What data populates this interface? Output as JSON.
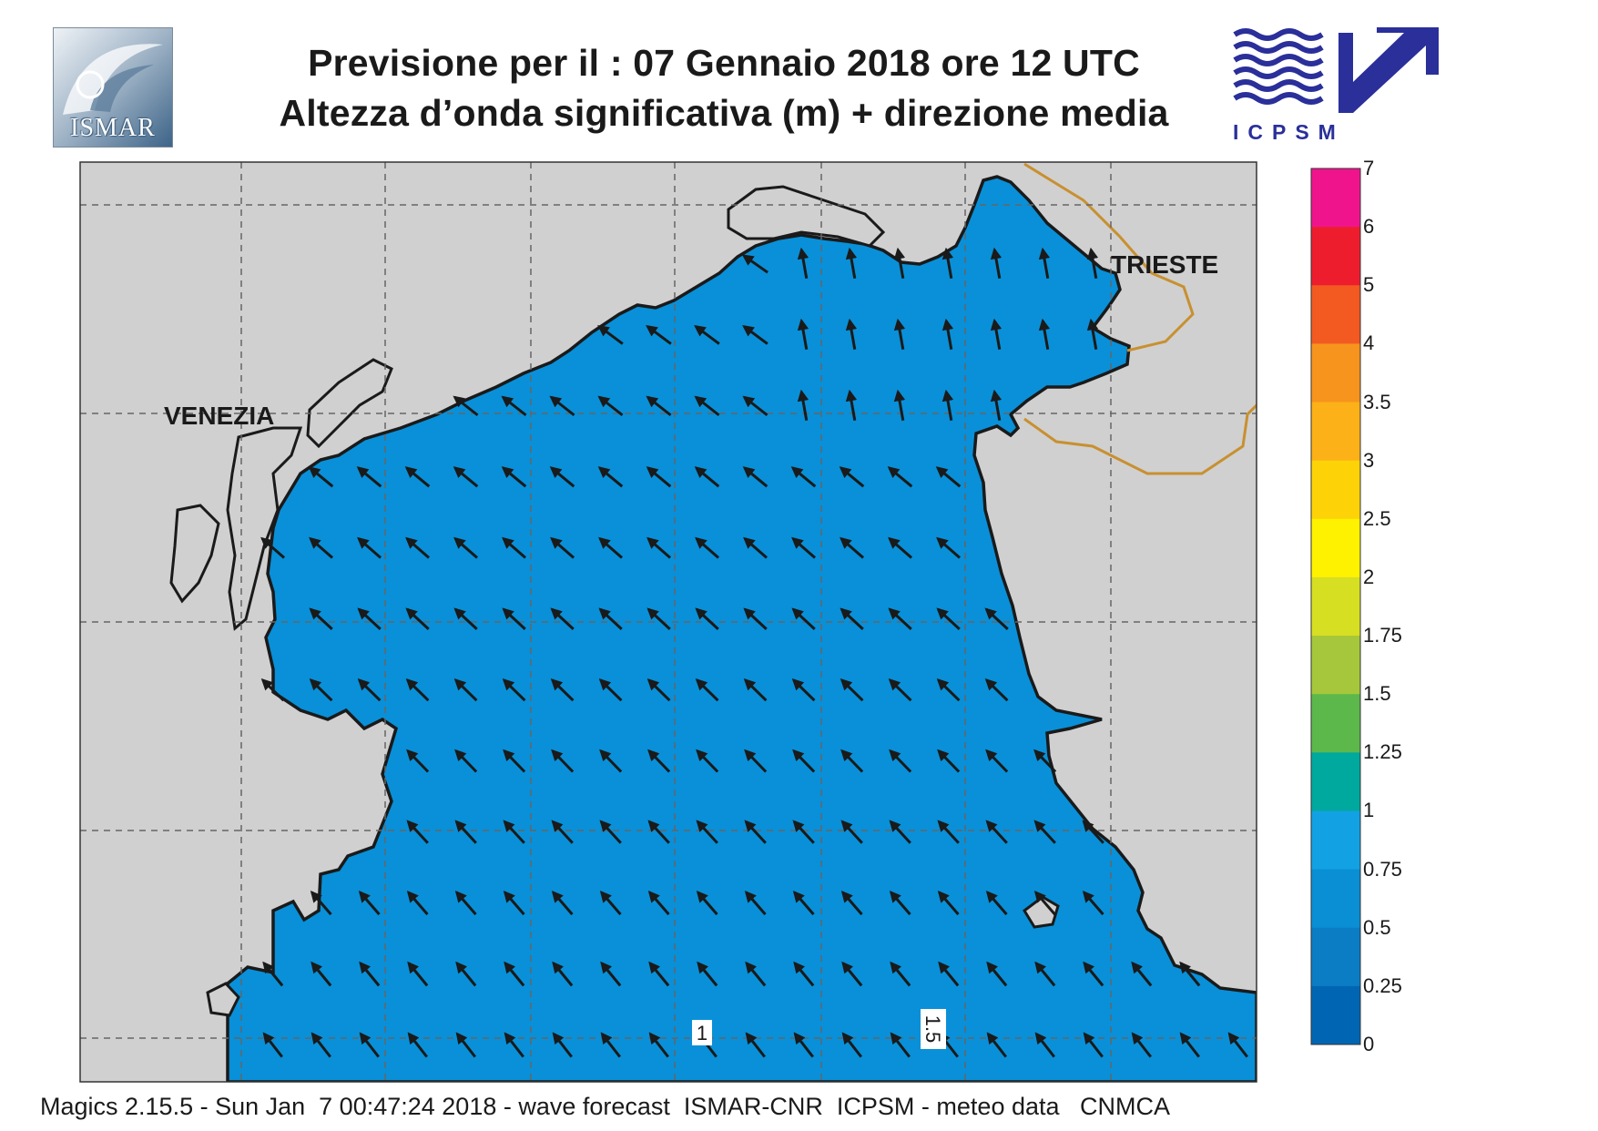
{
  "header": {
    "title_line1": "Previsione per il  :  07  Gennaio  2018   ore 12 UTC",
    "title_line2": "Altezza d’onda significativa (m) + direzione media"
  },
  "logos": {
    "left": {
      "text": "ISMAR",
      "icon": "ismar-logo-icon"
    },
    "right": {
      "text": "ICPSM",
      "icon": "icpsm-logo-icon",
      "wave_color": "#2a2f9a"
    }
  },
  "map": {
    "cities": [
      {
        "name": "VENEZIA"
      },
      {
        "name": "TRIESTE"
      }
    ],
    "contour_labels": [
      "1",
      "1.5"
    ],
    "land_color": "#d0d0d0",
    "sea_colors": {
      "0.25-0.5": "#0878c4",
      "0.5-0.75": "#0990d8",
      "0.75-1": "#0ba0e6",
      "1-1.25": "#00a8a0",
      "1.25-1.5": "#5ab84a",
      "1.5-1.75": "#a4c83a"
    },
    "arrow_direction": "north-west",
    "border_color": "#c89030"
  },
  "legend": {
    "labels": [
      "7",
      "6",
      "5",
      "4",
      "3.5",
      "3",
      "2.5",
      "2",
      "1.75",
      "1.5",
      "1.25",
      "1",
      "0.75",
      "0.5",
      "0.25",
      "0"
    ],
    "colors": [
      "#f0148c",
      "#ee1d2d",
      "#f25a22",
      "#f7941d",
      "#fbb117",
      "#fdd307",
      "#fff200",
      "#d7df23",
      "#a6c73b",
      "#5db84c",
      "#00a99d",
      "#12a2e3",
      "#0a8fd4",
      "#0a7dc4",
      "#0066b3"
    ]
  },
  "footer": {
    "text": "Magics 2.15.5 - Sun Jan  7 00:47:24 2018 - wave forecast  ISMAR-CNR  ICPSM - meteo data   CNMCA"
  }
}
